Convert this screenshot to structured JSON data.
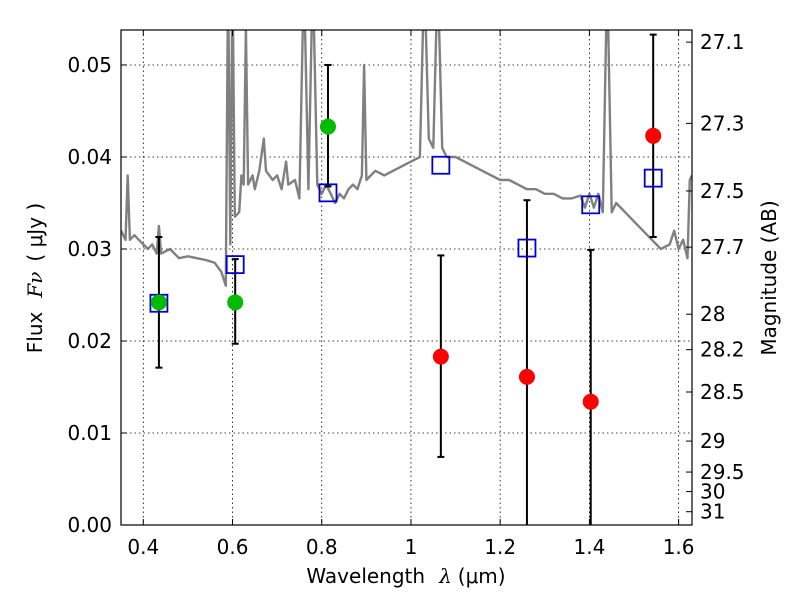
{
  "chart_data": {
    "type": "scatter",
    "xlabel": {
      "text": "Wavelength",
      "symbol": "λ",
      "unit": "(μm)"
    },
    "ylabel": {
      "text": "Flux",
      "symbol": "Fν",
      "unit": "( μJy )"
    },
    "y2label": "Magnitude (AB)",
    "xlim": [
      0.35,
      1.63
    ],
    "ylim": [
      0.0,
      0.0538
    ],
    "x_ticks": [
      0.4,
      0.6,
      0.8,
      1.0,
      1.2,
      1.4,
      1.6
    ],
    "x_tick_labels": [
      "0.4",
      "0.6",
      "0.8",
      "1",
      "1.2",
      "1.4",
      "1.6"
    ],
    "y_ticks": [
      0.0,
      0.01,
      0.02,
      0.03,
      0.04,
      0.05
    ],
    "y_tick_labels": [
      "0.00",
      "0.01",
      "0.02",
      "0.03",
      "0.04",
      "0.05"
    ],
    "y2_ticks": [
      {
        "label": "27.1",
        "mag": 27.1
      },
      {
        "label": "27.3",
        "mag": 27.3
      },
      {
        "label": "27.5",
        "mag": 27.5
      },
      {
        "label": "27.7",
        "mag": 27.7
      },
      {
        "label": "28",
        "mag": 28.0
      },
      {
        "label": "28.2",
        "mag": 28.2
      },
      {
        "label": "28.5",
        "mag": 28.5
      },
      {
        "label": "29",
        "mag": 29.0
      },
      {
        "label": "29.5",
        "mag": 29.5
      },
      {
        "label": "30",
        "mag": 30.0
      },
      {
        "label": "31",
        "mag": 31.0
      }
    ],
    "grid": true,
    "colors": {
      "model_line": "#808080",
      "detection": "#00bb00",
      "nondetection": "#ff0000",
      "model_photometry": "#0000cc",
      "errorbar": "#000000"
    },
    "series": [
      {
        "kind": "line",
        "points": [
          [
            0.35,
            0.032
          ],
          [
            0.36,
            0.031
          ],
          [
            0.365,
            0.038
          ],
          [
            0.37,
            0.031
          ],
          [
            0.38,
            0.0315
          ],
          [
            0.39,
            0.031
          ],
          [
            0.4,
            0.0305
          ],
          [
            0.41,
            0.03
          ],
          [
            0.42,
            0.0305
          ],
          [
            0.43,
            0.0295
          ],
          [
            0.435,
            0.0325
          ],
          [
            0.44,
            0.0295
          ],
          [
            0.46,
            0.03
          ],
          [
            0.48,
            0.029
          ],
          [
            0.5,
            0.0292
          ],
          [
            0.52,
            0.029
          ],
          [
            0.54,
            0.0288
          ],
          [
            0.56,
            0.0285
          ],
          [
            0.575,
            0.0275
          ],
          [
            0.585,
            0.026
          ],
          [
            0.59,
            0.06
          ],
          [
            0.595,
            0.0305
          ],
          [
            0.6,
            0.06
          ],
          [
            0.605,
            0.0335
          ],
          [
            0.615,
            0.034
          ],
          [
            0.62,
            0.038
          ],
          [
            0.625,
            0.037
          ],
          [
            0.63,
            0.054
          ],
          [
            0.635,
            0.037
          ],
          [
            0.645,
            0.038
          ],
          [
            0.65,
            0.0365
          ],
          [
            0.66,
            0.0385
          ],
          [
            0.67,
            0.042
          ],
          [
            0.675,
            0.0385
          ],
          [
            0.69,
            0.0375
          ],
          [
            0.7,
            0.038
          ],
          [
            0.71,
            0.0365
          ],
          [
            0.72,
            0.0395
          ],
          [
            0.725,
            0.037
          ],
          [
            0.74,
            0.0375
          ],
          [
            0.75,
            0.0355
          ],
          [
            0.76,
            0.06
          ],
          [
            0.77,
            0.0365
          ],
          [
            0.78,
            0.06
          ],
          [
            0.79,
            0.037
          ],
          [
            0.8,
            0.036
          ],
          [
            0.81,
            0.037
          ],
          [
            0.82,
            0.036
          ],
          [
            0.83,
            0.035
          ],
          [
            0.84,
            0.036
          ],
          [
            0.85,
            0.0355
          ],
          [
            0.86,
            0.0365
          ],
          [
            0.87,
            0.037
          ],
          [
            0.88,
            0.0365
          ],
          [
            0.89,
            0.038
          ],
          [
            0.895,
            0.05
          ],
          [
            0.9,
            0.0375
          ],
          [
            0.92,
            0.0385
          ],
          [
            0.94,
            0.038
          ],
          [
            0.96,
            0.0385
          ],
          [
            0.98,
            0.039
          ],
          [
            1.0,
            0.0395
          ],
          [
            1.02,
            0.04
          ],
          [
            1.03,
            0.06
          ],
          [
            1.04,
            0.042
          ],
          [
            1.05,
            0.041
          ],
          [
            1.06,
            0.06
          ],
          [
            1.07,
            0.041
          ],
          [
            1.08,
            0.04
          ],
          [
            1.1,
            0.04
          ],
          [
            1.12,
            0.0395
          ],
          [
            1.14,
            0.039
          ],
          [
            1.16,
            0.0385
          ],
          [
            1.18,
            0.038
          ],
          [
            1.2,
            0.0375
          ],
          [
            1.22,
            0.0375
          ],
          [
            1.24,
            0.037
          ],
          [
            1.26,
            0.0365
          ],
          [
            1.28,
            0.0365
          ],
          [
            1.3,
            0.036
          ],
          [
            1.32,
            0.036
          ],
          [
            1.34,
            0.0355
          ],
          [
            1.36,
            0.0355
          ],
          [
            1.38,
            0.0358
          ],
          [
            1.39,
            0.0345
          ],
          [
            1.4,
            0.036
          ],
          [
            1.41,
            0.0345
          ],
          [
            1.42,
            0.036
          ],
          [
            1.43,
            0.034
          ],
          [
            1.44,
            0.06
          ],
          [
            1.45,
            0.034
          ],
          [
            1.46,
            0.035
          ],
          [
            1.48,
            0.034
          ],
          [
            1.5,
            0.033
          ],
          [
            1.52,
            0.032
          ],
          [
            1.54,
            0.031
          ],
          [
            1.56,
            0.03
          ],
          [
            1.58,
            0.0305
          ],
          [
            1.59,
            0.032
          ],
          [
            1.6,
            0.03
          ],
          [
            1.61,
            0.031
          ],
          [
            1.62,
            0.029
          ],
          [
            1.625,
            0.0375
          ],
          [
            1.63,
            0.038
          ]
        ]
      },
      {
        "kind": "points",
        "marker": "circle",
        "color_key": "detection",
        "points": [
          {
            "x": 0.435,
            "y": 0.0242,
            "err_lo": 0.0071,
            "err_hi": 0.0071
          },
          {
            "x": 0.606,
            "y": 0.0242,
            "err_lo": 0.0045,
            "err_hi": 0.0047
          },
          {
            "x": 0.814,
            "y": 0.0433,
            "err_lo": 0.0065,
            "err_hi": 0.0067
          }
        ]
      },
      {
        "kind": "points",
        "marker": "circle",
        "color_key": "nondetection",
        "points": [
          {
            "x": 1.067,
            "y": 0.0183,
            "err_lo": 0.0109,
            "err_hi": 0.011
          },
          {
            "x": 1.26,
            "y": 0.0161,
            "err_lo": 0.0165,
            "err_hi": 0.0192
          },
          {
            "x": 1.403,
            "y": 0.0134,
            "err_lo": 0.0165,
            "err_hi": 0.0165
          },
          {
            "x": 1.543,
            "y": 0.0423,
            "err_lo": 0.011,
            "err_hi": 0.011
          }
        ]
      },
      {
        "kind": "points",
        "marker": "square",
        "color_key": "model_photometry",
        "points": [
          {
            "x": 0.435,
            "y": 0.0241
          },
          {
            "x": 0.606,
            "y": 0.0283
          },
          {
            "x": 0.814,
            "y": 0.0361
          },
          {
            "x": 1.067,
            "y": 0.0391
          },
          {
            "x": 1.26,
            "y": 0.0301
          },
          {
            "x": 1.403,
            "y": 0.0348
          },
          {
            "x": 1.543,
            "y": 0.0377
          }
        ]
      }
    ]
  }
}
